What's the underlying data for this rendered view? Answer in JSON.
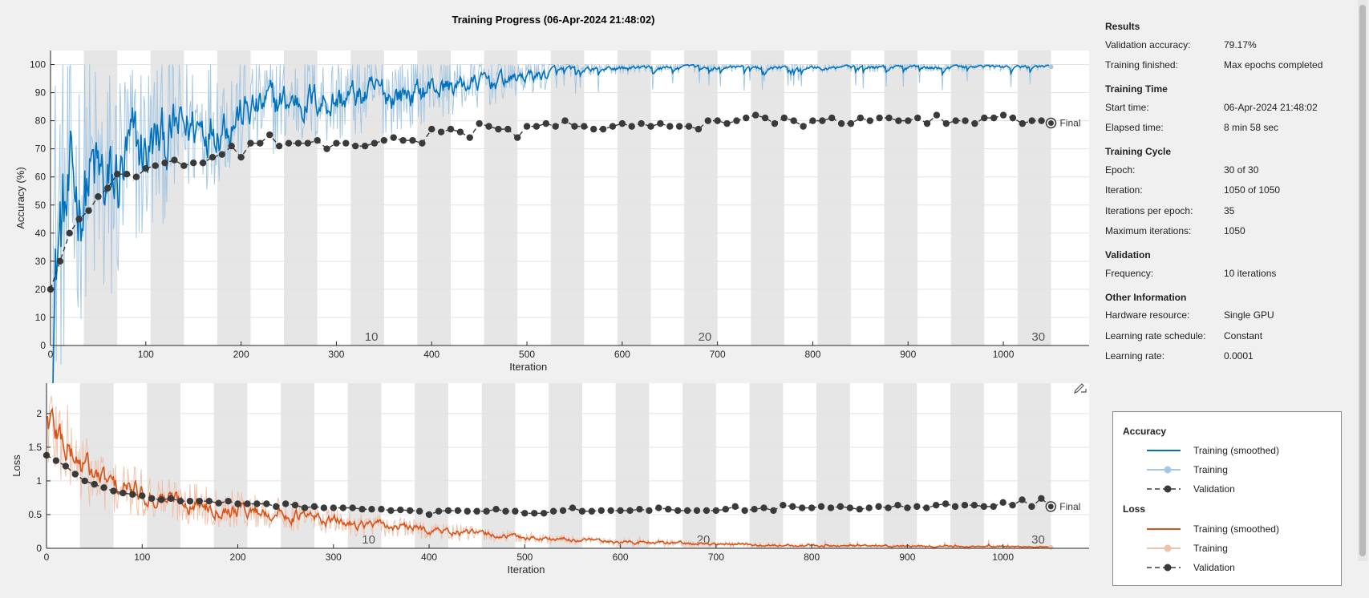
{
  "title": "Training Progress (06-Apr-2024 21:48:02)",
  "colors": {
    "accuracy_smoothed": "#0072bd",
    "accuracy_raw": "#a6c8e3",
    "loss_smoothed": "#d95319",
    "loss_raw": "#efc2ad",
    "validation": "#3a3a3a",
    "epoch_band": "#e6e6e6",
    "grid": "#e3e3e3"
  },
  "info": {
    "sections": [
      {
        "heading": "Results",
        "rows": [
          {
            "label": "Validation accuracy:",
            "value": "79.17%"
          },
          {
            "label": "Training finished:",
            "value": "Max epochs completed"
          }
        ]
      },
      {
        "heading": "Training Time",
        "rows": [
          {
            "label": "Start time:",
            "value": "06-Apr-2024 21:48:02"
          },
          {
            "label": "Elapsed time:",
            "value": "8 min 58 sec"
          }
        ]
      },
      {
        "heading": "Training Cycle",
        "rows": [
          {
            "label": "Epoch:",
            "value": "30 of 30"
          },
          {
            "label": "Iteration:",
            "value": "1050 of 1050"
          },
          {
            "label": "Iterations per epoch:",
            "value": "35"
          },
          {
            "label": "Maximum iterations:",
            "value": "1050"
          }
        ]
      },
      {
        "heading": "Validation",
        "rows": [
          {
            "label": "Frequency:",
            "value": "10 iterations"
          }
        ]
      },
      {
        "heading": "Other Information",
        "rows": [
          {
            "label": "Hardware resource:",
            "value": "Single GPU"
          },
          {
            "label": "Learning rate schedule:",
            "value": "Constant"
          },
          {
            "label": "Learning rate:",
            "value": "0.0001"
          }
        ]
      }
    ]
  },
  "legend": {
    "accuracy_heading": "Accuracy",
    "loss_heading": "Loss",
    "training_smoothed": "Training (smoothed)",
    "training": "Training",
    "validation": "Validation"
  },
  "chart_data": [
    {
      "type": "line",
      "name": "accuracy",
      "xlabel": "Iteration",
      "ylabel": "Accuracy (%)",
      "xlim": [
        0,
        1090
      ],
      "ylim": [
        0,
        105
      ],
      "xticks": [
        0,
        100,
        200,
        300,
        400,
        500,
        600,
        700,
        800,
        900,
        1000
      ],
      "yticks": [
        0,
        10,
        20,
        30,
        40,
        50,
        60,
        70,
        80,
        90,
        100
      ],
      "grid": true,
      "iterations_per_epoch": 35,
      "epoch_labels": [
        {
          "epoch": "10",
          "x": 325
        },
        {
          "epoch": "20",
          "x": 675
        },
        {
          "epoch": "30",
          "x": 1025
        }
      ],
      "final_label": "Final",
      "smoothed_profile": {
        "x": [
          0,
          10,
          20,
          30,
          40,
          50,
          60,
          70,
          80,
          100,
          120,
          150,
          180,
          200,
          230,
          260,
          300,
          330,
          360,
          400,
          450,
          500,
          550,
          600,
          650,
          700,
          800,
          900,
          1000,
          1050
        ],
        "y": [
          30,
          40,
          45,
          50,
          58,
          50,
          45,
          55,
          62,
          66,
          71,
          76,
          79,
          81,
          84,
          86,
          86,
          88,
          88,
          91,
          93,
          96,
          98,
          98.5,
          99,
          99.5,
          99.5,
          99.5,
          99.6,
          100
        ]
      },
      "validation": {
        "x": [
          0,
          10,
          20,
          30,
          40,
          50,
          60,
          70,
          80,
          90,
          100,
          110,
          120,
          130,
          140,
          150,
          160,
          170,
          180,
          190,
          200,
          210,
          220,
          230,
          240,
          250,
          260,
          270,
          280,
          290,
          300,
          310,
          320,
          330,
          340,
          350,
          360,
          370,
          380,
          390,
          400,
          410,
          420,
          430,
          440,
          450,
          460,
          470,
          480,
          490,
          500,
          510,
          520,
          530,
          540,
          550,
          560,
          570,
          580,
          590,
          600,
          610,
          620,
          630,
          640,
          650,
          660,
          670,
          680,
          690,
          700,
          710,
          720,
          730,
          740,
          750,
          760,
          770,
          780,
          790,
          800,
          810,
          820,
          830,
          840,
          850,
          860,
          870,
          880,
          890,
          900,
          910,
          920,
          930,
          940,
          950,
          960,
          970,
          980,
          990,
          1000,
          1010,
          1020,
          1030,
          1040,
          1050
        ],
        "y": [
          20,
          30,
          40,
          45,
          48,
          53,
          56,
          61,
          61,
          60,
          63,
          64,
          65,
          66,
          64,
          65,
          65,
          67,
          68,
          71,
          67,
          72,
          72,
          75,
          71,
          72,
          72,
          72,
          73,
          70,
          72,
          72,
          71,
          71,
          72,
          73,
          74,
          73,
          73,
          72,
          77,
          76,
          77,
          76,
          74,
          79,
          78,
          77,
          77,
          74,
          78,
          78,
          79,
          78,
          80,
          78,
          78,
          77,
          77,
          78,
          79,
          78,
          79,
          78,
          79,
          78,
          78,
          78,
          77,
          80,
          80,
          79,
          80,
          81,
          82,
          81,
          79,
          81,
          80,
          78,
          80,
          80,
          81,
          79,
          79,
          81,
          80,
          81,
          81,
          80,
          80,
          81,
          79,
          82,
          79,
          80,
          80,
          79,
          81,
          81,
          82,
          81,
          79,
          80,
          80,
          79.17
        ]
      }
    },
    {
      "type": "line",
      "name": "loss",
      "xlabel": "Iteration",
      "ylabel": "Loss",
      "xlim": [
        0,
        1090
      ],
      "ylim": [
        0,
        2.45
      ],
      "xticks": [
        0,
        100,
        200,
        300,
        400,
        500,
        600,
        700,
        800,
        900,
        1000
      ],
      "yticks": [
        0,
        0.5,
        1,
        1.5,
        2
      ],
      "ytick_labels": [
        "0",
        "0.5",
        "1",
        "1.5",
        "2"
      ],
      "grid": true,
      "iterations_per_epoch": 35,
      "epoch_labels": [
        {
          "epoch": "10",
          "x": 325
        },
        {
          "epoch": "20",
          "x": 675
        },
        {
          "epoch": "30",
          "x": 1025
        }
      ],
      "final_label": "Final",
      "smoothed_profile": {
        "x": [
          0,
          10,
          20,
          30,
          50,
          70,
          100,
          130,
          160,
          200,
          250,
          300,
          350,
          400,
          450,
          500,
          550,
          600,
          700,
          800,
          900,
          1000,
          1050
        ],
        "y": [
          1.9,
          1.7,
          1.5,
          1.3,
          1.05,
          0.9,
          0.8,
          0.72,
          0.66,
          0.58,
          0.5,
          0.4,
          0.33,
          0.27,
          0.21,
          0.16,
          0.12,
          0.09,
          0.06,
          0.04,
          0.03,
          0.02,
          0.02
        ]
      },
      "validation": {
        "x": [
          0,
          10,
          20,
          30,
          40,
          50,
          60,
          70,
          80,
          90,
          100,
          110,
          120,
          130,
          140,
          150,
          160,
          170,
          180,
          190,
          200,
          210,
          220,
          230,
          240,
          250,
          260,
          270,
          280,
          290,
          300,
          310,
          320,
          330,
          340,
          350,
          360,
          370,
          380,
          390,
          400,
          410,
          420,
          430,
          440,
          450,
          460,
          470,
          480,
          490,
          500,
          510,
          520,
          530,
          540,
          550,
          560,
          570,
          580,
          590,
          600,
          610,
          620,
          630,
          640,
          650,
          660,
          670,
          680,
          690,
          700,
          710,
          720,
          730,
          740,
          750,
          760,
          770,
          780,
          790,
          800,
          810,
          820,
          830,
          840,
          850,
          860,
          870,
          880,
          890,
          900,
          910,
          920,
          930,
          940,
          950,
          960,
          970,
          980,
          990,
          1000,
          1010,
          1020,
          1030,
          1040,
          1050
        ],
        "y": [
          1.38,
          1.3,
          1.22,
          1.1,
          1.0,
          0.95,
          0.9,
          0.85,
          0.82,
          0.8,
          0.78,
          0.74,
          0.72,
          0.74,
          0.7,
          0.7,
          0.7,
          0.7,
          0.67,
          0.7,
          0.66,
          0.66,
          0.66,
          0.66,
          0.62,
          0.66,
          0.64,
          0.6,
          0.62,
          0.6,
          0.6,
          0.6,
          0.6,
          0.58,
          0.58,
          0.58,
          0.56,
          0.57,
          0.56,
          0.55,
          0.5,
          0.55,
          0.56,
          0.56,
          0.55,
          0.55,
          0.55,
          0.58,
          0.55,
          0.55,
          0.52,
          0.52,
          0.52,
          0.55,
          0.56,
          0.6,
          0.55,
          0.55,
          0.56,
          0.56,
          0.56,
          0.56,
          0.58,
          0.56,
          0.6,
          0.58,
          0.56,
          0.56,
          0.56,
          0.56,
          0.56,
          0.58,
          0.62,
          0.56,
          0.58,
          0.6,
          0.56,
          0.64,
          0.62,
          0.6,
          0.6,
          0.62,
          0.6,
          0.62,
          0.6,
          0.58,
          0.6,
          0.62,
          0.6,
          0.64,
          0.6,
          0.62,
          0.6,
          0.64,
          0.66,
          0.62,
          0.64,
          0.64,
          0.62,
          0.62,
          0.68,
          0.64,
          0.72,
          0.62,
          0.74,
          0.62
        ]
      }
    }
  ]
}
